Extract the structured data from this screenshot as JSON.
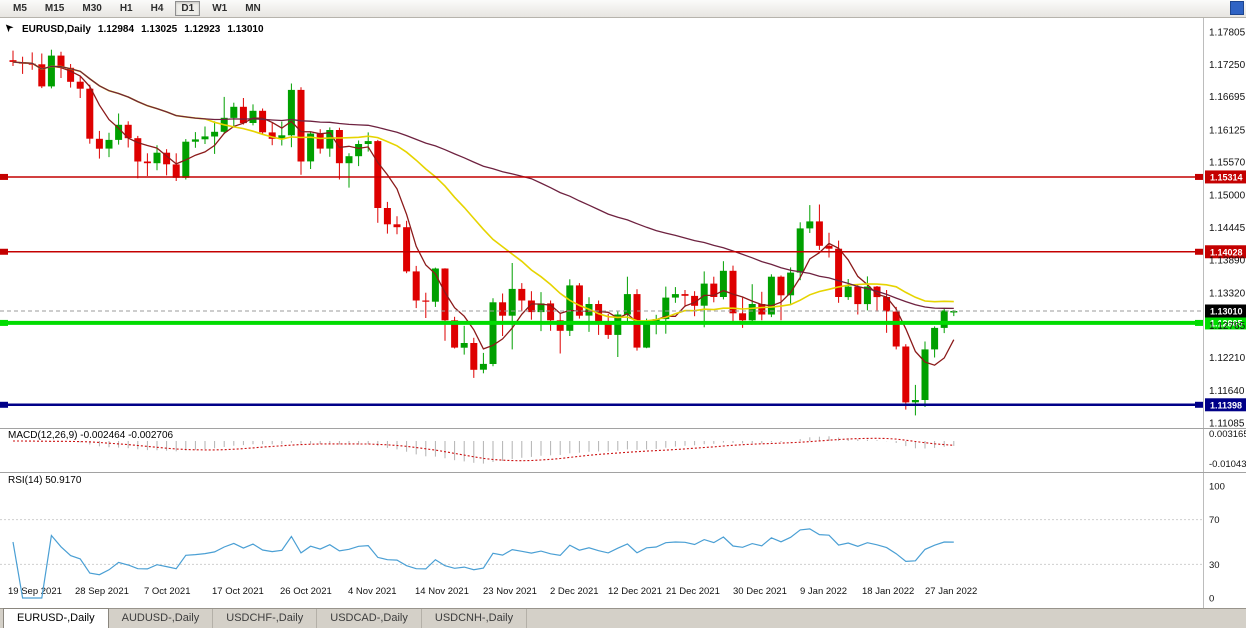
{
  "toolbar": {
    "timeframes": [
      "M5",
      "M15",
      "M30",
      "H1",
      "H4",
      "D1",
      "W1",
      "MN"
    ],
    "active": "D1"
  },
  "icons": {
    "cursor": "➤"
  },
  "tabs": [
    {
      "label": "EURUSD-,Daily",
      "active": true
    },
    {
      "label": "AUDUSD-,Daily",
      "active": false
    },
    {
      "label": "USDCHF-,Daily",
      "active": false
    },
    {
      "label": "USDCAD-,Daily",
      "active": false
    },
    {
      "label": "USDCNH-,Daily",
      "active": false
    }
  ],
  "chart_data": {
    "type": "candlestick",
    "symbol": "EURUSD",
    "timeframe": "Daily",
    "title": "EURUSD,Daily",
    "ohlc_display": {
      "open": "1.12984",
      "high": "1.13025",
      "low": "1.12923",
      "close": "1.13010"
    },
    "y_range": [
      1.11085,
      1.17805
    ],
    "y_axis_labels": [
      "1.17805",
      "1.17250",
      "1.16695",
      "1.16125",
      "1.15570",
      "1.15000",
      "1.14445",
      "1.13890",
      "1.13320",
      "1.12765",
      "1.12210",
      "1.11640",
      "1.11085"
    ],
    "x_labels": [
      "19 Sep 2021",
      "28 Sep 2021",
      "7 Oct 2021",
      "17 Oct 2021",
      "26 Oct 2021",
      "4 Nov 2021",
      "14 Nov 2021",
      "23 Nov 2021",
      "2 Dec 2021",
      "12 Dec 2021",
      "21 Dec 2021",
      "30 Dec 2021",
      "9 Jan 2022",
      "18 Jan 2022",
      "27 Jan 2022"
    ],
    "bull_color": "#00A000",
    "bear_color": "#DE0000",
    "levels": [
      {
        "price": 1.15314,
        "label": "1.15314",
        "color": "#C40000",
        "thickness": 1.5
      },
      {
        "price": 1.14028,
        "label": "1.14028",
        "color": "#C40000",
        "thickness": 1.5
      },
      {
        "price": 1.12805,
        "label": "1.12805",
        "color": "#00DC00",
        "thickness": 4
      },
      {
        "price": 1.11398,
        "label": "1.11398",
        "color": "#000088",
        "thickness": 2.5
      }
    ],
    "current_price": {
      "value": 1.1301,
      "label": "1.13010",
      "badge_color": "#000000"
    },
    "moving_averages": [
      {
        "type": "sma",
        "period": 5,
        "color": "#8B1A1A"
      },
      {
        "type": "sma",
        "period": 21,
        "color": "#E6D400"
      },
      {
        "type": "sma",
        "period": 55,
        "color": "#6E2240"
      }
    ],
    "panes": [
      {
        "type": "macd",
        "label": "MACD(12,26,9) -0.002464 -0.002706",
        "params": [
          12,
          26,
          9
        ],
        "main": -0.002464,
        "signal": -0.002706,
        "axis_labels": [
          "0.003165",
          "-0.01043"
        ],
        "histogram_color": "#B2B2B2",
        "signal_color": "#CC1111"
      },
      {
        "type": "rsi",
        "label": "RSI(14) 50.9170",
        "period": 14,
        "value": 50.917,
        "axis_labels": [
          "100",
          "70",
          "30",
          "0"
        ],
        "levels": [
          70,
          30
        ],
        "line_color": "#4A9FD4"
      }
    ],
    "candles_ohlc": [
      [
        1.1732,
        1.17485,
        1.1722,
        1.1729
      ],
      [
        1.1729,
        1.1738,
        1.17085,
        1.1726
      ],
      [
        1.1726,
        1.17455,
        1.17155,
        1.1725
      ],
      [
        1.1725,
        1.17435,
        1.1684,
        1.1687
      ],
      [
        1.1687,
        1.175,
        1.16835,
        1.174
      ],
      [
        1.174,
        1.17465,
        1.17015,
        1.1719
      ],
      [
        1.1719,
        1.17255,
        1.1685,
        1.1695
      ],
      [
        1.1695,
        1.17055,
        1.1667,
        1.1683
      ],
      [
        1.1683,
        1.169,
        1.15885,
        1.1597
      ],
      [
        1.1597,
        1.16105,
        1.1563,
        1.158
      ],
      [
        1.158,
        1.16075,
        1.15655,
        1.1595
      ],
      [
        1.1595,
        1.16405,
        1.1587,
        1.1621
      ],
      [
        1.1621,
        1.1627,
        1.1582,
        1.1598
      ],
      [
        1.1598,
        1.1602,
        1.1529,
        1.1558
      ],
      [
        1.1558,
        1.1572,
        1.1533,
        1.1555
      ],
      [
        1.1555,
        1.1586,
        1.1543,
        1.1573
      ],
      [
        1.1573,
        1.1579,
        1.1534,
        1.1553
      ],
      [
        1.1553,
        1.1572,
        1.15245,
        1.153
      ],
      [
        1.153,
        1.15965,
        1.1527,
        1.1592
      ],
      [
        1.1592,
        1.16085,
        1.15815,
        1.1596
      ],
      [
        1.1596,
        1.1618,
        1.1588,
        1.1601
      ],
      [
        1.1601,
        1.1627,
        1.1571,
        1.1609
      ],
      [
        1.1609,
        1.1669,
        1.1605,
        1.1633
      ],
      [
        1.1633,
        1.1659,
        1.1616,
        1.1652
      ],
      [
        1.1652,
        1.1667,
        1.16215,
        1.1624
      ],
      [
        1.1624,
        1.1656,
        1.162,
        1.1645
      ],
      [
        1.1645,
        1.1649,
        1.16035,
        1.1608
      ],
      [
        1.1608,
        1.1625,
        1.1586,
        1.1597
      ],
      [
        1.1597,
        1.16265,
        1.15855,
        1.1603
      ],
      [
        1.1603,
        1.1692,
        1.15825,
        1.1681
      ],
      [
        1.1681,
        1.16855,
        1.1535,
        1.1558
      ],
      [
        1.1558,
        1.16095,
        1.1545,
        1.1606
      ],
      [
        1.1606,
        1.16135,
        1.15715,
        1.158
      ],
      [
        1.158,
        1.16165,
        1.1566,
        1.1612
      ],
      [
        1.1612,
        1.1616,
        1.1527,
        1.1555
      ],
      [
        1.1555,
        1.1572,
        1.1513,
        1.1567
      ],
      [
        1.1567,
        1.1594,
        1.155,
        1.1588
      ],
      [
        1.1588,
        1.1608,
        1.1575,
        1.1593
      ],
      [
        1.1593,
        1.1595,
        1.14525,
        1.1478
      ],
      [
        1.1478,
        1.14885,
        1.1434,
        1.145
      ],
      [
        1.145,
        1.1464,
        1.1433,
        1.1445
      ],
      [
        1.1445,
        1.1456,
        1.1366,
        1.1369
      ],
      [
        1.1369,
        1.13785,
        1.1306,
        1.1319
      ],
      [
        1.1319,
        1.13325,
        1.1289,
        1.1317
      ],
      [
        1.1317,
        1.13755,
        1.1308,
        1.1374
      ],
      [
        1.1374,
        1.13745,
        1.125,
        1.1285
      ],
      [
        1.1285,
        1.1291,
        1.12365,
        1.1238
      ],
      [
        1.1238,
        1.12755,
        1.1226,
        1.1246
      ],
      [
        1.1246,
        1.1255,
        1.1186,
        1.12
      ],
      [
        1.12,
        1.1229,
        1.1194,
        1.121
      ],
      [
        1.121,
        1.1323,
        1.1206,
        1.1316
      ],
      [
        1.1316,
        1.1331,
        1.1258,
        1.1293
      ],
      [
        1.1293,
        1.13835,
        1.1235,
        1.1339
      ],
      [
        1.1339,
        1.1349,
        1.13005,
        1.1319
      ],
      [
        1.1319,
        1.1335,
        1.1286,
        1.1299
      ],
      [
        1.1299,
        1.13335,
        1.12665,
        1.1314
      ],
      [
        1.1314,
        1.1319,
        1.1267,
        1.1285
      ],
      [
        1.1285,
        1.1296,
        1.1228,
        1.1267
      ],
      [
        1.1267,
        1.13555,
        1.1258,
        1.1345
      ],
      [
        1.1345,
        1.1349,
        1.1288,
        1.1293
      ],
      [
        1.1293,
        1.13245,
        1.1265,
        1.1313
      ],
      [
        1.1313,
        1.1319,
        1.126,
        1.1283
      ],
      [
        1.1283,
        1.1296,
        1.1253,
        1.126
      ],
      [
        1.126,
        1.13,
        1.1222,
        1.1295
      ],
      [
        1.1295,
        1.136,
        1.1281,
        1.133
      ],
      [
        1.133,
        1.13385,
        1.1233,
        1.1238
      ],
      [
        1.1238,
        1.1288,
        1.1237,
        1.128
      ],
      [
        1.128,
        1.12945,
        1.1261,
        1.1287
      ],
      [
        1.1287,
        1.1343,
        1.1262,
        1.1324
      ],
      [
        1.1324,
        1.1342,
        1.1315,
        1.133
      ],
      [
        1.133,
        1.1337,
        1.1308,
        1.1327
      ],
      [
        1.1327,
        1.1335,
        1.1292,
        1.131
      ],
      [
        1.131,
        1.1369,
        1.1273,
        1.1348
      ],
      [
        1.1348,
        1.136,
        1.1316,
        1.1325
      ],
      [
        1.1325,
        1.13865,
        1.1321,
        1.137
      ],
      [
        1.137,
        1.1379,
        1.1279,
        1.1297
      ],
      [
        1.1297,
        1.1324,
        1.1272,
        1.1285
      ],
      [
        1.1285,
        1.1347,
        1.1278,
        1.1313
      ],
      [
        1.1313,
        1.1334,
        1.1285,
        1.1295
      ],
      [
        1.1295,
        1.1364,
        1.12905,
        1.136
      ],
      [
        1.136,
        1.1362,
        1.1285,
        1.1328
      ],
      [
        1.1328,
        1.1376,
        1.13135,
        1.1367
      ],
      [
        1.1367,
        1.14535,
        1.1354,
        1.1443
      ],
      [
        1.1443,
        1.1483,
        1.1435,
        1.1455
      ],
      [
        1.1455,
        1.1484,
        1.1406,
        1.1413
      ],
      [
        1.1413,
        1.14355,
        1.1393,
        1.1408
      ],
      [
        1.1408,
        1.1422,
        1.1315,
        1.1325
      ],
      [
        1.1325,
        1.1356,
        1.132,
        1.1343
      ],
      [
        1.1343,
        1.1347,
        1.1295,
        1.1313
      ],
      [
        1.1313,
        1.13605,
        1.1302,
        1.1343
      ],
      [
        1.1343,
        1.1344,
        1.13,
        1.1325
      ],
      [
        1.1325,
        1.1337,
        1.12635,
        1.13
      ],
      [
        1.13,
        1.1308,
        1.1235,
        1.124
      ],
      [
        1.124,
        1.1244,
        1.11315,
        1.1144
      ],
      [
        1.1144,
        1.1174,
        1.11215,
        1.1148
      ],
      [
        1.1148,
        1.12485,
        1.1136,
        1.1235
      ],
      [
        1.1235,
        1.12745,
        1.1221,
        1.1272
      ],
      [
        1.1272,
        1.13055,
        1.1263,
        1.1302
      ],
      [
        1.12984,
        1.13025,
        1.12923,
        1.1301
      ]
    ]
  }
}
